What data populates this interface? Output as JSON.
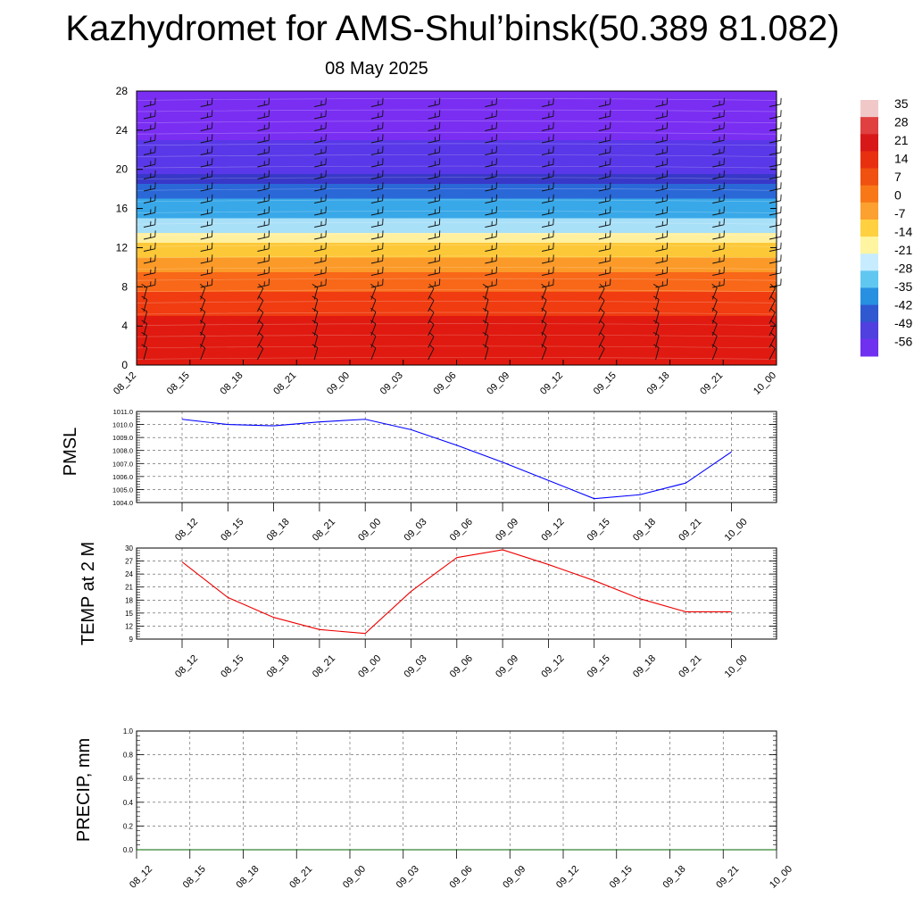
{
  "header": {
    "title": "Kazhydromet for AMS-Shul’binsk(50.389 81.082)",
    "date": "08 May 2025"
  },
  "colorbar": {
    "labels": [
      "35",
      "28",
      "21",
      "14",
      "7",
      "0",
      "-7",
      "-14",
      "-21",
      "-28",
      "-35",
      "-42",
      "-49",
      "-56"
    ],
    "colors": [
      "#f0c8c8",
      "#e04040",
      "#d81818",
      "#e83010",
      "#f05010",
      "#f87818",
      "#fca030",
      "#ffd040",
      "#fff5a0",
      "#c8ecff",
      "#60c8f0",
      "#2890e0",
      "#3058d0",
      "#5040e0",
      "#7030f0"
    ]
  },
  "chart_data": [
    {
      "type": "heatmap",
      "name": "vertical cross-section",
      "x_ticks": [
        "08_12",
        "08_15",
        "08_18",
        "08_21",
        "09_00",
        "09_03",
        "09_06",
        "09_09",
        "09_12",
        "09_15",
        "09_18",
        "09_21",
        "10_00"
      ],
      "y_ticks": [
        0,
        4,
        8,
        12,
        16,
        20,
        24,
        28
      ],
      "ylim": [
        0,
        28
      ],
      "layers": [
        {
          "from": 0,
          "to": 5,
          "color": "#e01a10"
        },
        {
          "from": 5,
          "to": 7.5,
          "color": "#f03c10"
        },
        {
          "from": 7.5,
          "to": 9.5,
          "color": "#f86818"
        },
        {
          "from": 9.5,
          "to": 11,
          "color": "#fb9a28"
        },
        {
          "from": 11,
          "to": 12.5,
          "color": "#fdc838"
        },
        {
          "from": 12.5,
          "to": 13.5,
          "color": "#fff0a0"
        },
        {
          "from": 13.5,
          "to": 15,
          "color": "#a8e0f8"
        },
        {
          "from": 15,
          "to": 17,
          "color": "#38a8e8"
        },
        {
          "from": 17,
          "to": 18.5,
          "color": "#2a68d8"
        },
        {
          "from": 18.5,
          "to": 19.5,
          "color": "#3838c8"
        },
        {
          "from": 19.5,
          "to": 23,
          "color": "#5838e8"
        },
        {
          "from": 23,
          "to": 28,
          "color": "#7a2ef2"
        }
      ]
    },
    {
      "type": "line",
      "ylabel": "PMSL",
      "categories": [
        "08_12",
        "08_15",
        "08_18",
        "08_21",
        "09_00",
        "09_03",
        "09_06",
        "09_09",
        "09_12",
        "09_15",
        "09_18",
        "09_21",
        "10_00"
      ],
      "ylim": [
        1004.0,
        1011.0
      ],
      "y_ticks": [
        "1004.0",
        "1005.0",
        "1006.0",
        "1007.0",
        "1008.0",
        "1009.0",
        "1010.0",
        "1011.0"
      ],
      "color": "#0000ff",
      "values": [
        1010.4,
        1010.0,
        1009.9,
        1010.2,
        1010.4,
        1009.6,
        1008.4,
        1007.1,
        1005.7,
        1004.3,
        1004.6,
        1005.5,
        1007.9
      ]
    },
    {
      "type": "line",
      "ylabel": "TEMP at 2 M",
      "categories": [
        "08_12",
        "08_15",
        "08_18",
        "08_21",
        "09_00",
        "09_03",
        "09_06",
        "09_09",
        "09_12",
        "09_15",
        "09_18",
        "09_21",
        "10_00"
      ],
      "ylim": [
        9,
        30
      ],
      "y_ticks": [
        "9",
        "12",
        "15",
        "18",
        "21",
        "24",
        "27",
        "30"
      ],
      "color": "#ee0000",
      "values": [
        26.8,
        18.6,
        14.0,
        11.2,
        10.3,
        20.0,
        27.8,
        29.6,
        26.2,
        22.5,
        18.3,
        15.3,
        15.3
      ]
    },
    {
      "type": "line",
      "ylabel": "PRECIP, mm",
      "categories": [
        "08_12",
        "08_15",
        "08_18",
        "08_21",
        "09_00",
        "09_03",
        "09_06",
        "09_09",
        "09_12",
        "09_15",
        "09_18",
        "09_21",
        "10_00"
      ],
      "ylim": [
        0.0,
        1.0
      ],
      "y_ticks": [
        "0.0",
        "0.2",
        "0.4",
        "0.6",
        "0.8",
        "1.0"
      ],
      "color": "#006600",
      "values": [
        0,
        0,
        0,
        0,
        0,
        0,
        0,
        0,
        0,
        0,
        0,
        0,
        0
      ]
    }
  ]
}
